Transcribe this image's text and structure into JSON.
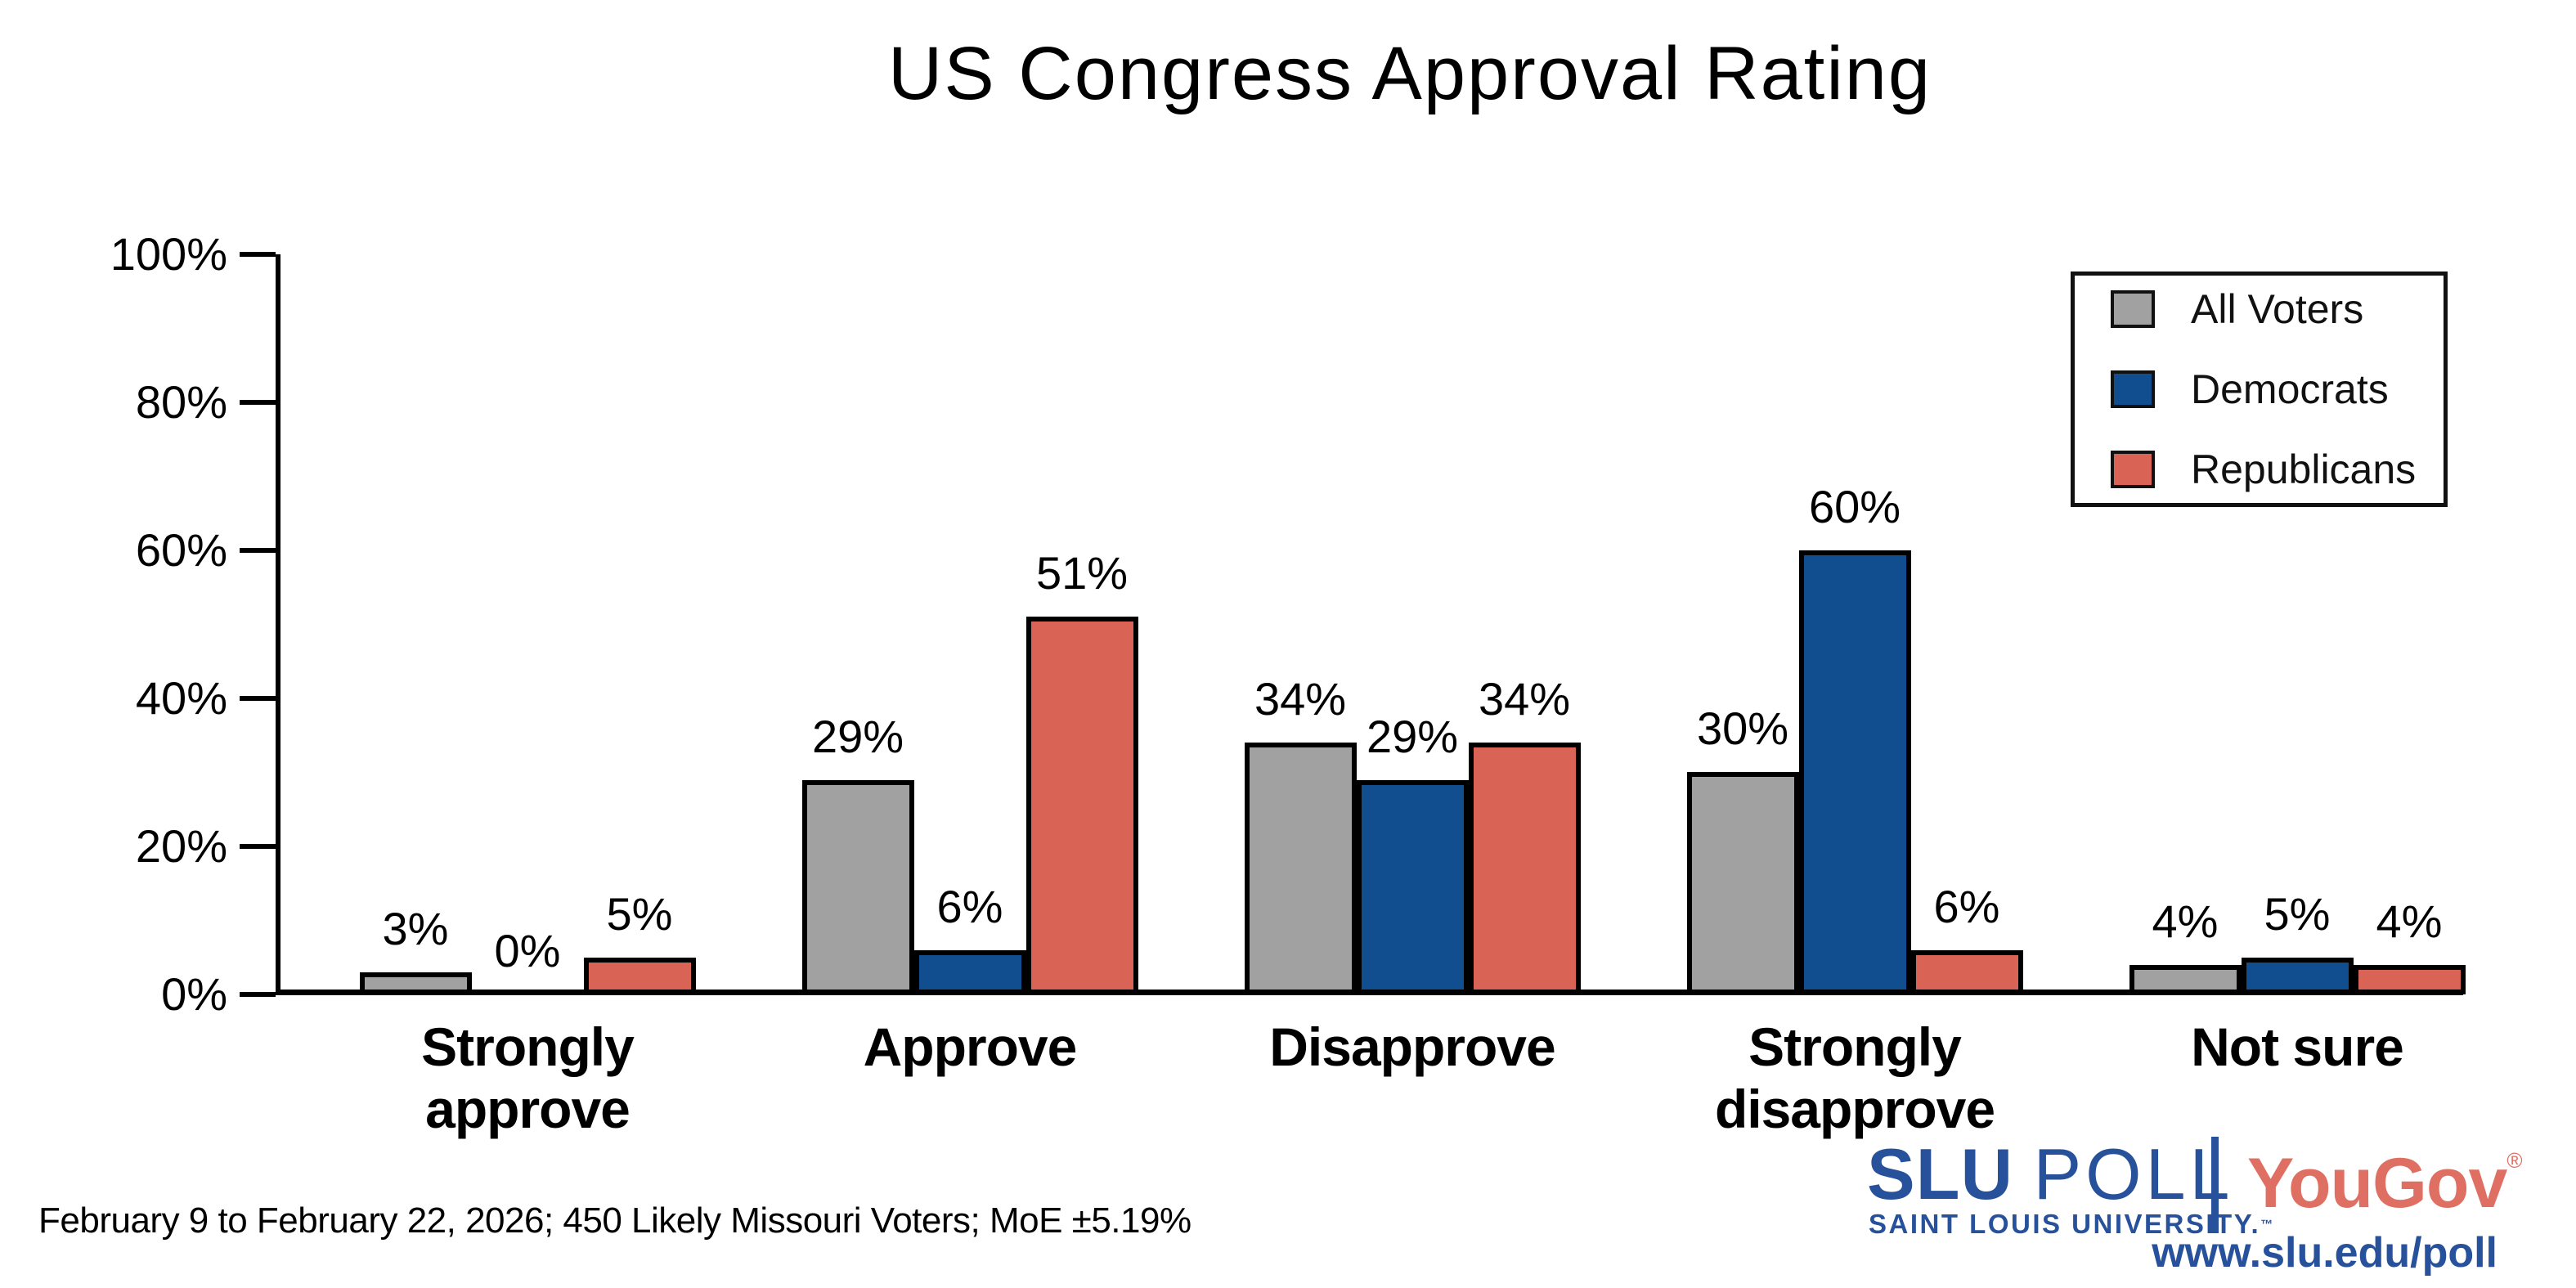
{
  "title": "US Congress Approval Rating",
  "chart_data": {
    "type": "bar",
    "title": "US Congress Approval Rating",
    "categories": [
      "Strongly approve",
      "Approve",
      "Disapprove",
      "Strongly disapprove",
      "Not sure"
    ],
    "series": [
      {
        "name": "All Voters",
        "color": "#a1a1a1",
        "values": [
          3,
          29,
          34,
          30,
          4
        ]
      },
      {
        "name": "Democrats",
        "color": "#114e90",
        "values": [
          0,
          6,
          29,
          60,
          5
        ]
      },
      {
        "name": "Republicans",
        "color": "#d96355",
        "values": [
          5,
          51,
          34,
          6,
          4
        ]
      }
    ],
    "ylim": [
      0,
      100
    ],
    "ytick_values": [
      0,
      20,
      40,
      60,
      80,
      100
    ],
    "ytick_labels": [
      "0%",
      "20%",
      "40%",
      "60%",
      "80%",
      "100%"
    ],
    "value_suffix": "%",
    "legend_position": "top-right",
    "grid": false
  },
  "footer": {
    "note": "February 9 to February 22, 2026; 450 Likely Missouri Voters; MoE ±5.19%"
  },
  "branding": {
    "slu_wordmark_bold": "SLU",
    "slu_wordmark_light": "POLL",
    "slu_subtitle": "SAINT LOUIS UNIVERSITY.",
    "slu_trademark": "™",
    "yougov_wordmark": "YouGov",
    "yougov_registered": "®",
    "url": "www.slu.edu/poll",
    "slu_blue": "#27519b",
    "yougov_red": "#df6f63"
  }
}
